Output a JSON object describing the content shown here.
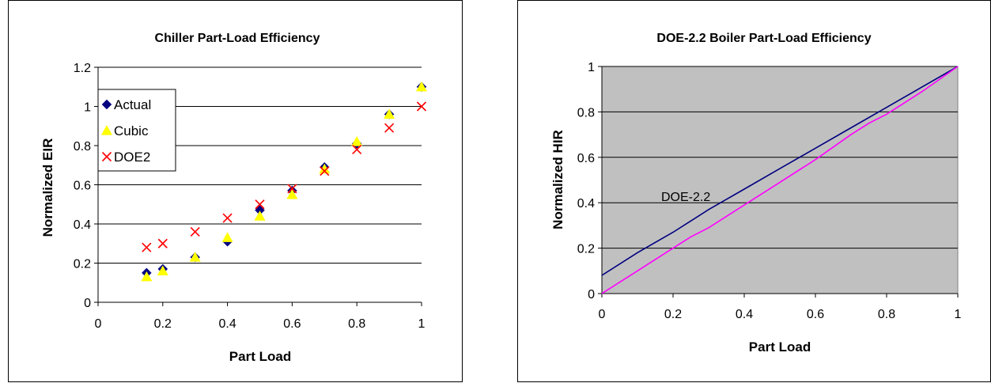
{
  "chart_data": [
    {
      "type": "scatter",
      "title": "Chiller Part-Load Efficiency",
      "xlabel": "Part Load",
      "ylabel": "Normalized EIR",
      "xlim": [
        0,
        1
      ],
      "ylim": [
        0,
        1.2
      ],
      "xticks": [
        "0",
        "0.2",
        "0.4",
        "0.6",
        "0.8",
        "1"
      ],
      "yticks": [
        "0",
        "0.2",
        "0.4",
        "0.6",
        "0.8",
        "1",
        "1.2"
      ],
      "grid": "horizontal",
      "legend_position": "left",
      "background": "#ffffff",
      "series": [
        {
          "name": "Actual",
          "marker": "diamond",
          "color": "#000080",
          "x": [
            0.15,
            0.2,
            0.3,
            0.4,
            0.5,
            0.6,
            0.7,
            0.8,
            0.9,
            1.0
          ],
          "y": [
            0.15,
            0.17,
            0.23,
            0.31,
            0.47,
            0.57,
            0.69,
            0.81,
            0.96,
            1.1
          ]
        },
        {
          "name": "Cubic",
          "marker": "triangle",
          "color": "#ffff00",
          "x": [
            0.15,
            0.2,
            0.3,
            0.4,
            0.5,
            0.6,
            0.7,
            0.8,
            0.9,
            1.0
          ],
          "y": [
            0.13,
            0.16,
            0.23,
            0.33,
            0.44,
            0.55,
            0.68,
            0.82,
            0.96,
            1.1
          ]
        },
        {
          "name": "DOE2",
          "marker": "x",
          "color": "#ff0000",
          "x": [
            0.15,
            0.2,
            0.3,
            0.4,
            0.5,
            0.6,
            0.7,
            0.8,
            0.9,
            1.0
          ],
          "y": [
            0.28,
            0.3,
            0.36,
            0.43,
            0.5,
            0.58,
            0.67,
            0.78,
            0.89,
            1.0
          ]
        }
      ]
    },
    {
      "type": "line",
      "title": "DOE-2.2 Boiler Part-Load Efficiency",
      "xlabel": "Part Load",
      "ylabel": "Normalized HIR",
      "xlim": [
        0,
        1
      ],
      "ylim": [
        0,
        1
      ],
      "xticks": [
        "0",
        "0.2",
        "0.4",
        "0.6",
        "0.8",
        "1"
      ],
      "yticks": [
        "0",
        "0.2",
        "0.4",
        "0.6",
        "0.8",
        "1"
      ],
      "grid": "horizontal",
      "background": "#c0c0c0",
      "annotations": [
        "DOE-2.2"
      ],
      "series": [
        {
          "color": "#000080",
          "x": [
            0,
            0.1,
            0.2,
            0.25,
            0.3,
            0.4,
            0.5,
            0.6,
            0.7,
            0.8,
            0.9,
            1.0
          ],
          "y": [
            0.08,
            0.18,
            0.27,
            0.32,
            0.37,
            0.46,
            0.55,
            0.64,
            0.73,
            0.82,
            0.91,
            1.0
          ]
        },
        {
          "color": "#ff00ff",
          "x": [
            0,
            0.1,
            0.2,
            0.25,
            0.3,
            0.4,
            0.5,
            0.6,
            0.7,
            0.75,
            0.8,
            0.9,
            1.0
          ],
          "y": [
            0,
            0.1,
            0.2,
            0.25,
            0.29,
            0.39,
            0.49,
            0.59,
            0.7,
            0.75,
            0.79,
            0.89,
            1.0
          ]
        }
      ]
    }
  ]
}
